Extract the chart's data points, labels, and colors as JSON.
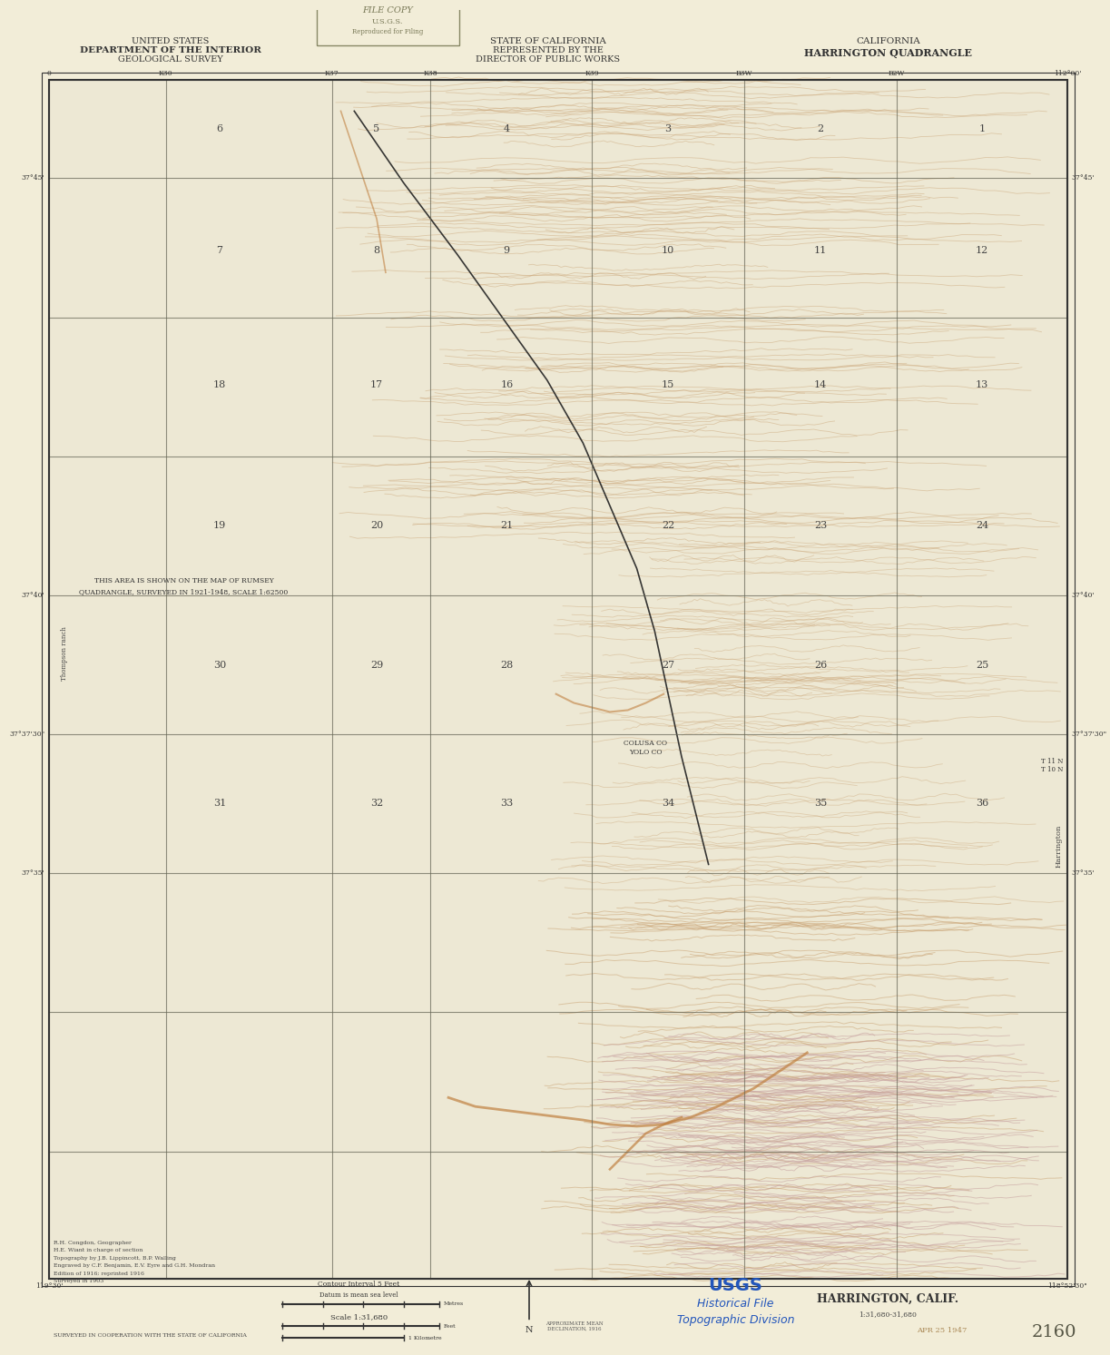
{
  "bg_color": "#f5f0e0",
  "paper_color": "#f2edd8",
  "map_area_color": "#ede8d4",
  "title_left_line1": "UNITED STATES",
  "title_left_line2": "DEPARTMENT OF THE INTERIOR",
  "title_left_line3": "GEOLOGICAL SURVEY",
  "title_center_line1": "STATE OF CALIFORNIA",
  "title_center_line2": "REPRESENTED BY THE",
  "title_center_line3": "DIRECTOR OF PUBLIC WORKS",
  "title_right_line1": "CALIFORNIA",
  "title_right_line2": "HARRINGTON QUADRANGLE",
  "usgs_label": "USGS",
  "historical_file": "Historical File",
  "topographic_division": "Topographic Division",
  "map_name": "HARRINGTON, CALIF.",
  "map_number": "2160",
  "date_stamp": "APR 25 1947",
  "file_copy_text": "FILE COPY",
  "contour_interval": "Contour interval 5 feet",
  "datum_note": "Datum is mean sea level",
  "scale_note": "Scale 1:31,680",
  "surveyed_note": "SURVEYED IN COOPERATION WITH THE STATE OF CALIFORNIA",
  "contour_color": "#c8a070",
  "water_color": "#b0c8d8",
  "grid_color": "#555555",
  "text_color": "#333333",
  "blue_text_color": "#2255bb",
  "faint_orange": "#d4a878",
  "annotation_text": "THIS AREA IS SHOWN ON THE MAP OF RUMSEY\nQUADRANGLE, SURVEYED IN 1921-1948, SCALE 1:62500",
  "topo_bg": "#ede8d4"
}
